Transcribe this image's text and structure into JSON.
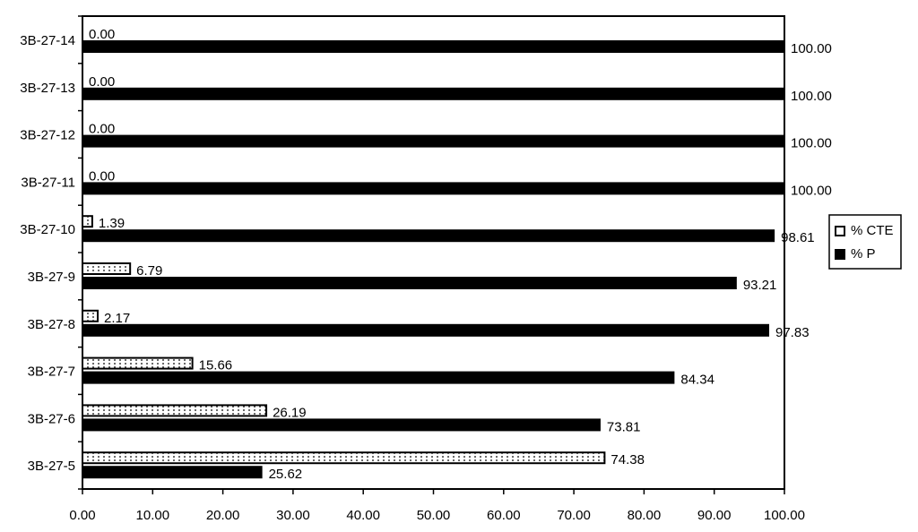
{
  "chart_data": {
    "type": "bar",
    "orientation": "horizontal",
    "categories": [
      "3B-27-5",
      "3B-27-6",
      "3B-27-7",
      "3B-27-8",
      "3B-27-9",
      "3B-27-10",
      "3B-27-11",
      "3B-27-12",
      "3B-27-13",
      "3B-27-14"
    ],
    "series": [
      {
        "name": "% CTE",
        "color": "#ffffff",
        "pattern": "dots",
        "values": [
          74.38,
          26.19,
          15.66,
          2.17,
          6.79,
          1.39,
          0,
          0,
          0,
          0
        ],
        "value_labels": [
          "74.38",
          "26.19",
          "15.66",
          "2.17",
          "6.79",
          "1.39",
          "0.00",
          "0.00",
          "0.00",
          "0.00"
        ]
      },
      {
        "name": "% P",
        "color": "#000000",
        "values": [
          25.62,
          73.81,
          84.34,
          97.83,
          93.21,
          98.61,
          100,
          100,
          100,
          100
        ],
        "value_labels": [
          "25.62",
          "73.81",
          "84.34",
          "97.83",
          "93.21",
          "98.61",
          "100.00",
          "100.00",
          "100.00",
          "100.00"
        ]
      }
    ],
    "xlim": [
      0,
      100
    ],
    "xticks": [
      {
        "value": 0,
        "label": "0.00"
      },
      {
        "value": 10,
        "label": "10.00"
      },
      {
        "value": 20,
        "label": "20.00"
      },
      {
        "value": 30,
        "label": "30.00"
      },
      {
        "value": 40,
        "label": "40.00"
      },
      {
        "value": 50,
        "label": "50.00"
      },
      {
        "value": 60,
        "label": "60.00"
      },
      {
        "value": 70,
        "label": "70.00"
      },
      {
        "value": 80,
        "label": "80.00"
      },
      {
        "value": 90,
        "label": "90.00"
      },
      {
        "value": 100,
        "label": "100.00"
      }
    ],
    "grid": false,
    "legend": "right"
  }
}
